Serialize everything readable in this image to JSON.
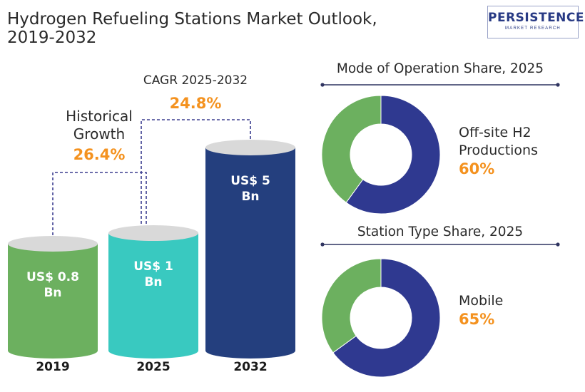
{
  "title": "Hydrogen Refueling Stations Market Outlook, 2019-2032",
  "logo": {
    "main": "PERSISTENCE",
    "sub": "MARKET RESEARCH"
  },
  "colors": {
    "bar_2019": "#6cb05f",
    "bar_2025": "#39c9c0",
    "bar_2032": "#243f7e",
    "bar_top": "#d9d9d9",
    "donut_main": "#2f3990",
    "donut_rest": "#6cb05f",
    "accent": "#f4921f",
    "connector": "#3b3d8f",
    "divider": "#2f3460"
  },
  "chart_data": [
    {
      "type": "bar",
      "categories": [
        "2019",
        "2025",
        "2032"
      ],
      "values": [
        0.8,
        1,
        5
      ],
      "value_labels": [
        "US$ 0.8 Bn",
        "US$ 1 Bn",
        "US$ 5 Bn"
      ],
      "annotations": [
        {
          "label": "Historical Growth",
          "value": "26.4%",
          "from": "2019",
          "to": "2025"
        },
        {
          "label": "CAGR 2025-2032",
          "value": "24.8%",
          "from": "2025",
          "to": "2032"
        }
      ]
    },
    {
      "type": "pie",
      "title": "Mode of Operation  Share, 2025",
      "slices": [
        {
          "label": "Off-site H2 Productions",
          "value": 60
        },
        {
          "label": "",
          "value": 40
        }
      ],
      "callout": {
        "label": "Off-site H2 Productions",
        "value": "60%"
      }
    },
    {
      "type": "pie",
      "title": "Station Type Share, 2025",
      "slices": [
        {
          "label": "Mobile",
          "value": 65
        },
        {
          "label": "",
          "value": 35
        }
      ],
      "callout": {
        "label": "Mobile",
        "value": "65%"
      }
    }
  ]
}
